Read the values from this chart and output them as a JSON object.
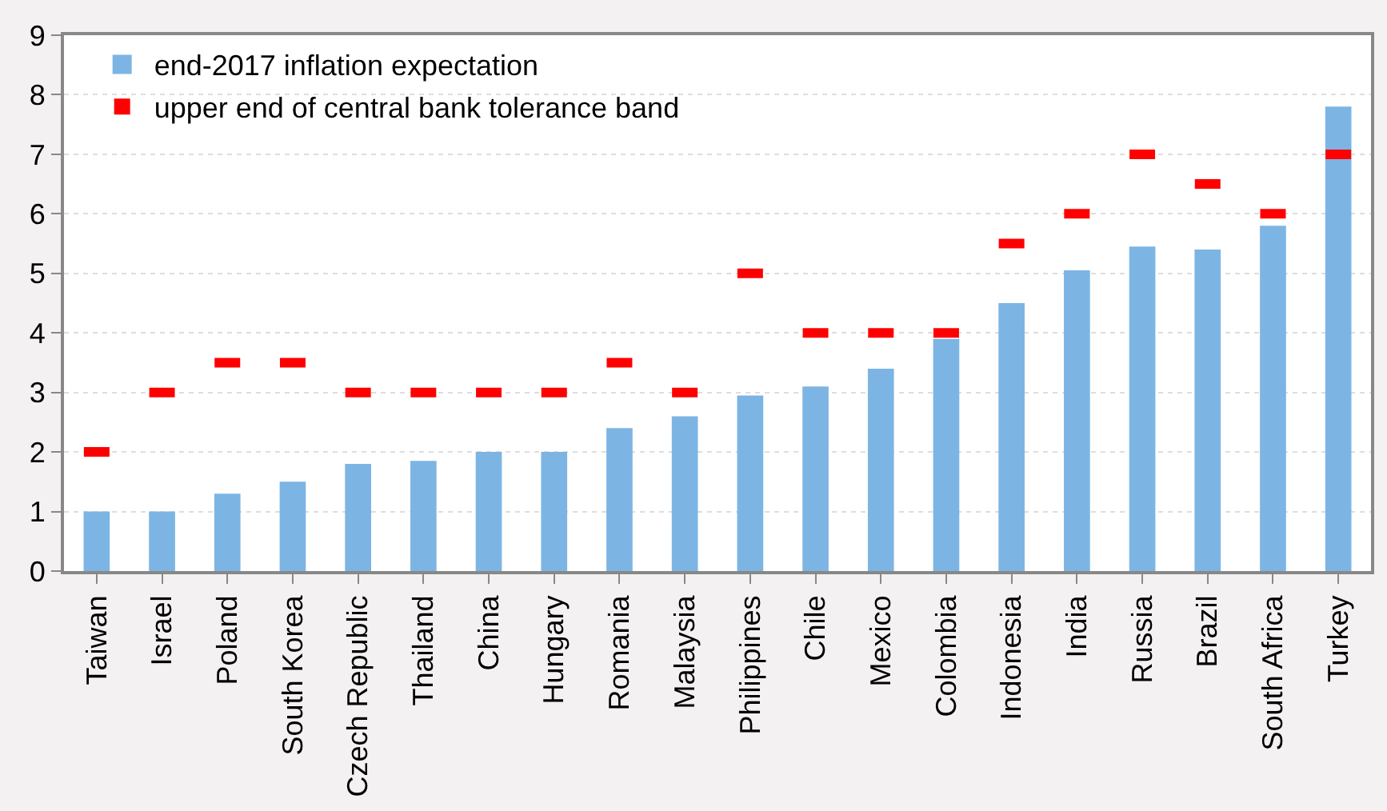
{
  "chart_data": {
    "type": "bar",
    "categories": [
      "Taiwan",
      "Israel",
      "Poland",
      "South Korea",
      "Czech Republic",
      "Thailand",
      "China",
      "Hungary",
      "Romania",
      "Malaysia",
      "Philippines",
      "Chile",
      "Mexico",
      "Colombia",
      "Indonesia",
      "India",
      "Russia",
      "Brazil",
      "South Africa",
      "Turkey"
    ],
    "series": [
      {
        "name": "end-2017 inflation expectation",
        "color": "#7cb5e4",
        "values": [
          1,
          1,
          1.3,
          1.5,
          1.8,
          1.85,
          2,
          2,
          2.4,
          2.6,
          2.95,
          3.1,
          3.4,
          3.9,
          4.5,
          5.05,
          5.45,
          5.4,
          5.8,
          7.8
        ]
      },
      {
        "name": "upper end of central bank tolerance band",
        "type": "scatter",
        "color": "#ff0000",
        "values": [
          2,
          3,
          3.5,
          3.5,
          3,
          3,
          3,
          3,
          3.5,
          3,
          5,
          4,
          4,
          4,
          5.5,
          6,
          7,
          6.5,
          6,
          7
        ]
      }
    ],
    "ylim": [
      0,
      9
    ],
    "yticks": [
      0,
      1,
      2,
      3,
      4,
      5,
      6,
      7,
      8,
      9
    ],
    "grid": "y",
    "legend": "top left"
  }
}
